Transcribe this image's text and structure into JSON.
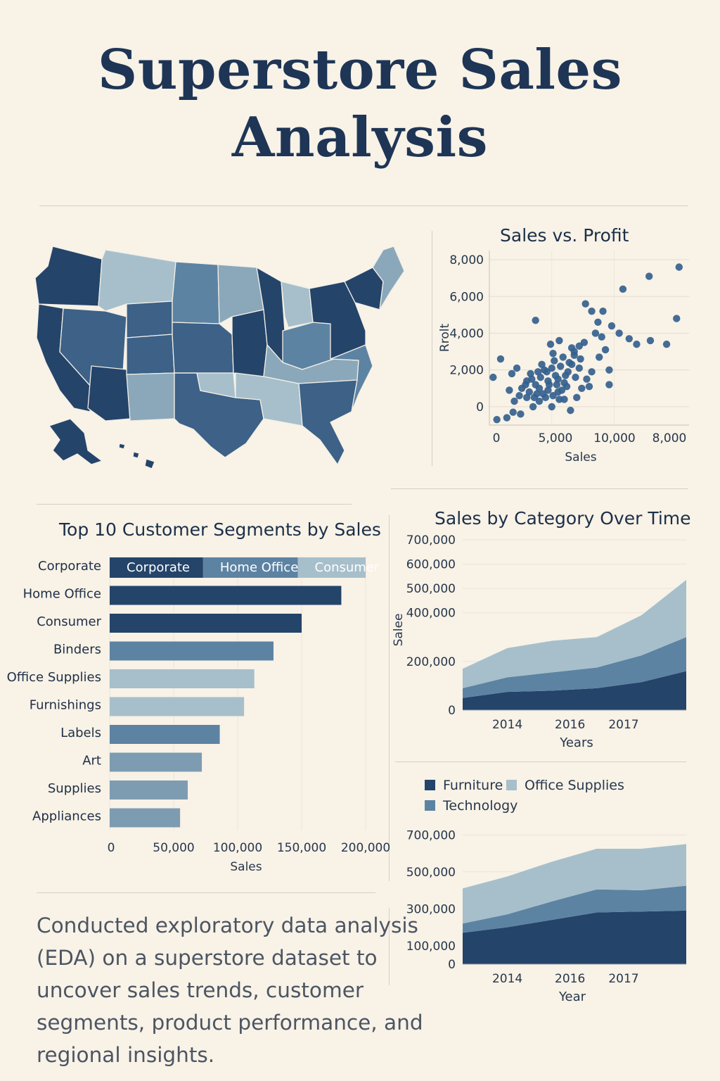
{
  "header": {
    "title_line1": "Superstore Sales",
    "title_line2": "Analysis"
  },
  "colors": {
    "background": "#f8f2e7",
    "dark": "#24446a",
    "mid": "#5d83a3",
    "light": "#a6bfcb",
    "text": "#1e3555"
  },
  "map": {
    "icon": "us-states-choropleth",
    "shades": [
      "#24446a",
      "#3d6187",
      "#5d83a3",
      "#8aa8ba",
      "#a6bfcb"
    ]
  },
  "summary": {
    "text": "Conducted exploratory data analysis (EDA) on a superstore dataset to uncover sales trends, customer segments, product performance, and regional insights."
  },
  "chart_data": [
    {
      "type": "scatter",
      "title": "Sales vs. Profit",
      "xlabel": "Sales",
      "ylabel": "Rrolt",
      "x_ticks": [
        "0",
        "5,000",
        "10,000",
        "8,000"
      ],
      "y_ticks": [
        "8,000",
        "6,000",
        "4,000",
        "2,000",
        "0"
      ],
      "xlim": [
        0,
        16000
      ],
      "ylim": [
        -1000,
        8500
      ],
      "points": [
        [
          15200,
          7600
        ],
        [
          12800,
          7100
        ],
        [
          10700,
          6400
        ],
        [
          15000,
          4800
        ],
        [
          7700,
          5600
        ],
        [
          3700,
          4700
        ],
        [
          8200,
          5200
        ],
        [
          8700,
          4600
        ],
        [
          9100,
          5200
        ],
        [
          9800,
          4400
        ],
        [
          10400,
          4000
        ],
        [
          11200,
          3700
        ],
        [
          11800,
          3400
        ],
        [
          12900,
          3600
        ],
        [
          14200,
          3400
        ],
        [
          8500,
          4000
        ],
        [
          9000,
          3800
        ],
        [
          7600,
          3500
        ],
        [
          7200,
          3300
        ],
        [
          5600,
          3600
        ],
        [
          4900,
          3400
        ],
        [
          6800,
          3000
        ],
        [
          9300,
          3100
        ],
        [
          8800,
          2700
        ],
        [
          9600,
          2000
        ],
        [
          9600,
          1200
        ],
        [
          8000,
          1100
        ],
        [
          900,
          2600
        ],
        [
          300,
          1600
        ],
        [
          1800,
          1800
        ],
        [
          2200,
          2100
        ],
        [
          600,
          -700
        ],
        [
          1400,
          -600
        ],
        [
          1900,
          -300
        ],
        [
          2500,
          -400
        ],
        [
          3000,
          500
        ],
        [
          3500,
          0
        ],
        [
          4000,
          300
        ],
        [
          5000,
          0
        ],
        [
          5500,
          800
        ],
        [
          6000,
          400
        ],
        [
          6500,
          -200
        ],
        [
          7000,
          500
        ],
        [
          7400,
          1000
        ],
        [
          7800,
          1500
        ],
        [
          8200,
          1900
        ],
        [
          2600,
          1000
        ],
        [
          3000,
          1400
        ],
        [
          3300,
          1800
        ],
        [
          3700,
          1200
        ],
        [
          4100,
          1600
        ],
        [
          4400,
          2000
        ],
        [
          4700,
          1400
        ],
        [
          5000,
          2100
        ],
        [
          5300,
          1700
        ],
        [
          5700,
          2200
        ],
        [
          6000,
          1300
        ],
        [
          6300,
          1900
        ],
        [
          6600,
          2300
        ],
        [
          6900,
          1600
        ],
        [
          7200,
          2100
        ],
        [
          3200,
          800
        ],
        [
          3600,
          500
        ],
        [
          4000,
          1000
        ],
        [
          4300,
          700
        ],
        [
          4700,
          900
        ],
        [
          5100,
          600
        ],
        [
          5400,
          1200
        ],
        [
          5800,
          900
        ],
        [
          6200,
          1100
        ],
        [
          4600,
          1900
        ],
        [
          5200,
          2500
        ],
        [
          5900,
          2700
        ],
        [
          6400,
          2400
        ],
        [
          6800,
          2800
        ],
        [
          4200,
          2300
        ],
        [
          3900,
          1900
        ],
        [
          4800,
          1200
        ],
        [
          5500,
          1500
        ],
        [
          6100,
          1700
        ],
        [
          2900,
          1200
        ],
        [
          3400,
          1500
        ],
        [
          2400,
          600
        ],
        [
          2000,
          300
        ],
        [
          1600,
          900
        ],
        [
          5100,
          2900
        ],
        [
          6600,
          3200
        ],
        [
          7300,
          2600
        ],
        [
          4500,
          500
        ],
        [
          3800,
          700
        ],
        [
          5600,
          400
        ]
      ]
    },
    {
      "type": "bar",
      "title": "Top 10 Customer Segments by Sales",
      "xlabel": "Sales",
      "x_ticks": [
        "0",
        "50,000",
        "100,000",
        "150,000",
        "200,000"
      ],
      "xlim": [
        0,
        200000
      ],
      "categories": [
        "Corporate",
        "Home Office",
        "Consumer",
        "Binders",
        "Office Supplies",
        "Furnishings",
        "Labels",
        "Art",
        "Supplies",
        "Appliances"
      ],
      "values": [
        200000,
        181000,
        150000,
        128000,
        113000,
        105000,
        86000,
        72000,
        61000,
        55000
      ],
      "first_bar_segments": [
        {
          "label": "Corporate",
          "value": 73000
        },
        {
          "label": "Home Office",
          "value": 74000
        },
        {
          "label": "Consumer",
          "value": 53000
        }
      ]
    },
    {
      "type": "area",
      "title": "Sales by Category Over Time",
      "xlabel": "Years",
      "ylabel": "Salee",
      "x_ticks": [
        "2014",
        "2016",
        "2017"
      ],
      "y_ticks": [
        "700,000",
        "600,000",
        "500,000",
        "400,000",
        "200,000",
        "0"
      ],
      "x": [
        2013,
        2014,
        2015,
        2016,
        2017,
        2018
      ],
      "series": [
        {
          "name": "Furniture",
          "values": [
            50000,
            75000,
            80000,
            90000,
            115000,
            160000
          ]
        },
        {
          "name": "Technology",
          "values": [
            40000,
            60000,
            75000,
            85000,
            110000,
            140000
          ]
        },
        {
          "name": "Office Supplies",
          "values": [
            80000,
            120000,
            130000,
            125000,
            165000,
            235000
          ]
        }
      ]
    },
    {
      "type": "area",
      "xlabel": "Year",
      "legend": [
        "Furniture",
        "Office Supplies",
        "Technology"
      ],
      "x_ticks": [
        "2014",
        "2016",
        "2017"
      ],
      "y_ticks": [
        "700,000",
        "500,000",
        "300,000",
        "100,000",
        "0"
      ],
      "x": [
        2013,
        2014,
        2015,
        2016,
        2017,
        2018
      ],
      "series": [
        {
          "name": "Furniture",
          "values": [
            170000,
            200000,
            240000,
            280000,
            285000,
            290000
          ]
        },
        {
          "name": "Technology",
          "values": [
            50000,
            70000,
            100000,
            125000,
            115000,
            135000
          ]
        },
        {
          "name": "Office Supplies",
          "values": [
            190000,
            205000,
            215000,
            220000,
            225000,
            225000
          ]
        }
      ]
    }
  ]
}
